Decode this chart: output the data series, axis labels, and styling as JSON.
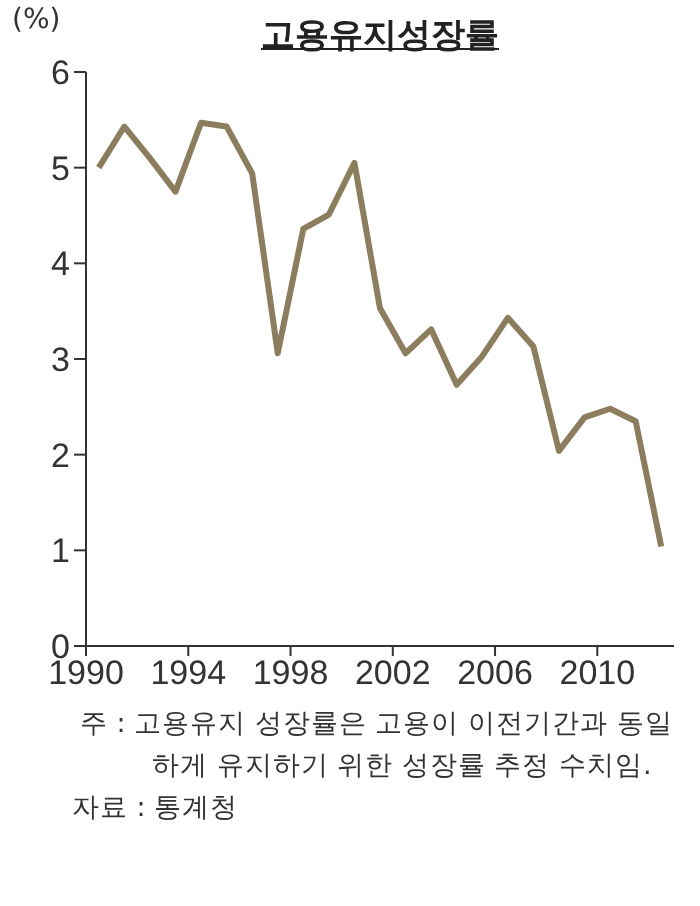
{
  "chart_data": {
    "type": "line",
    "title": "고용유지성장률",
    "ylabel": "(%)",
    "x": [
      1990.5,
      1991.5,
      1992.5,
      1993.5,
      1994.5,
      1995.5,
      1996.5,
      1997.5,
      1998.5,
      1999.5,
      2000.5,
      2001.5,
      2002.5,
      2003.5,
      2004.5,
      2005.5,
      2006.5,
      2007.5,
      2008.5,
      2009.5,
      2010.5,
      2011.5,
      2012.5
    ],
    "series": [
      {
        "color": "#8b7d5e",
        "values": [
          5.0,
          5.43,
          5.1,
          4.75,
          5.47,
          5.43,
          4.94,
          3.06,
          4.36,
          4.51,
          5.05,
          3.53,
          3.06,
          3.31,
          2.73,
          3.03,
          3.43,
          3.13,
          2.04,
          2.39,
          2.48,
          2.35,
          1.04
        ]
      }
    ],
    "xlim": [
      1990,
      2013
    ],
    "xticks": [
      1990,
      1994,
      1998,
      2002,
      2006,
      2010
    ],
    "ylim": [
      0,
      6
    ],
    "yticks": [
      0,
      1,
      2,
      3,
      4,
      5,
      6
    ],
    "grid": false,
    "legend": false,
    "marker": "none",
    "line_style": "solid",
    "annotations": [
      "주 : 고용유지 성장률은 고용이 이전기간과 동일하게 유지하기 위한 성장률 추정 수치임.",
      "자료 : 통계청"
    ]
  }
}
